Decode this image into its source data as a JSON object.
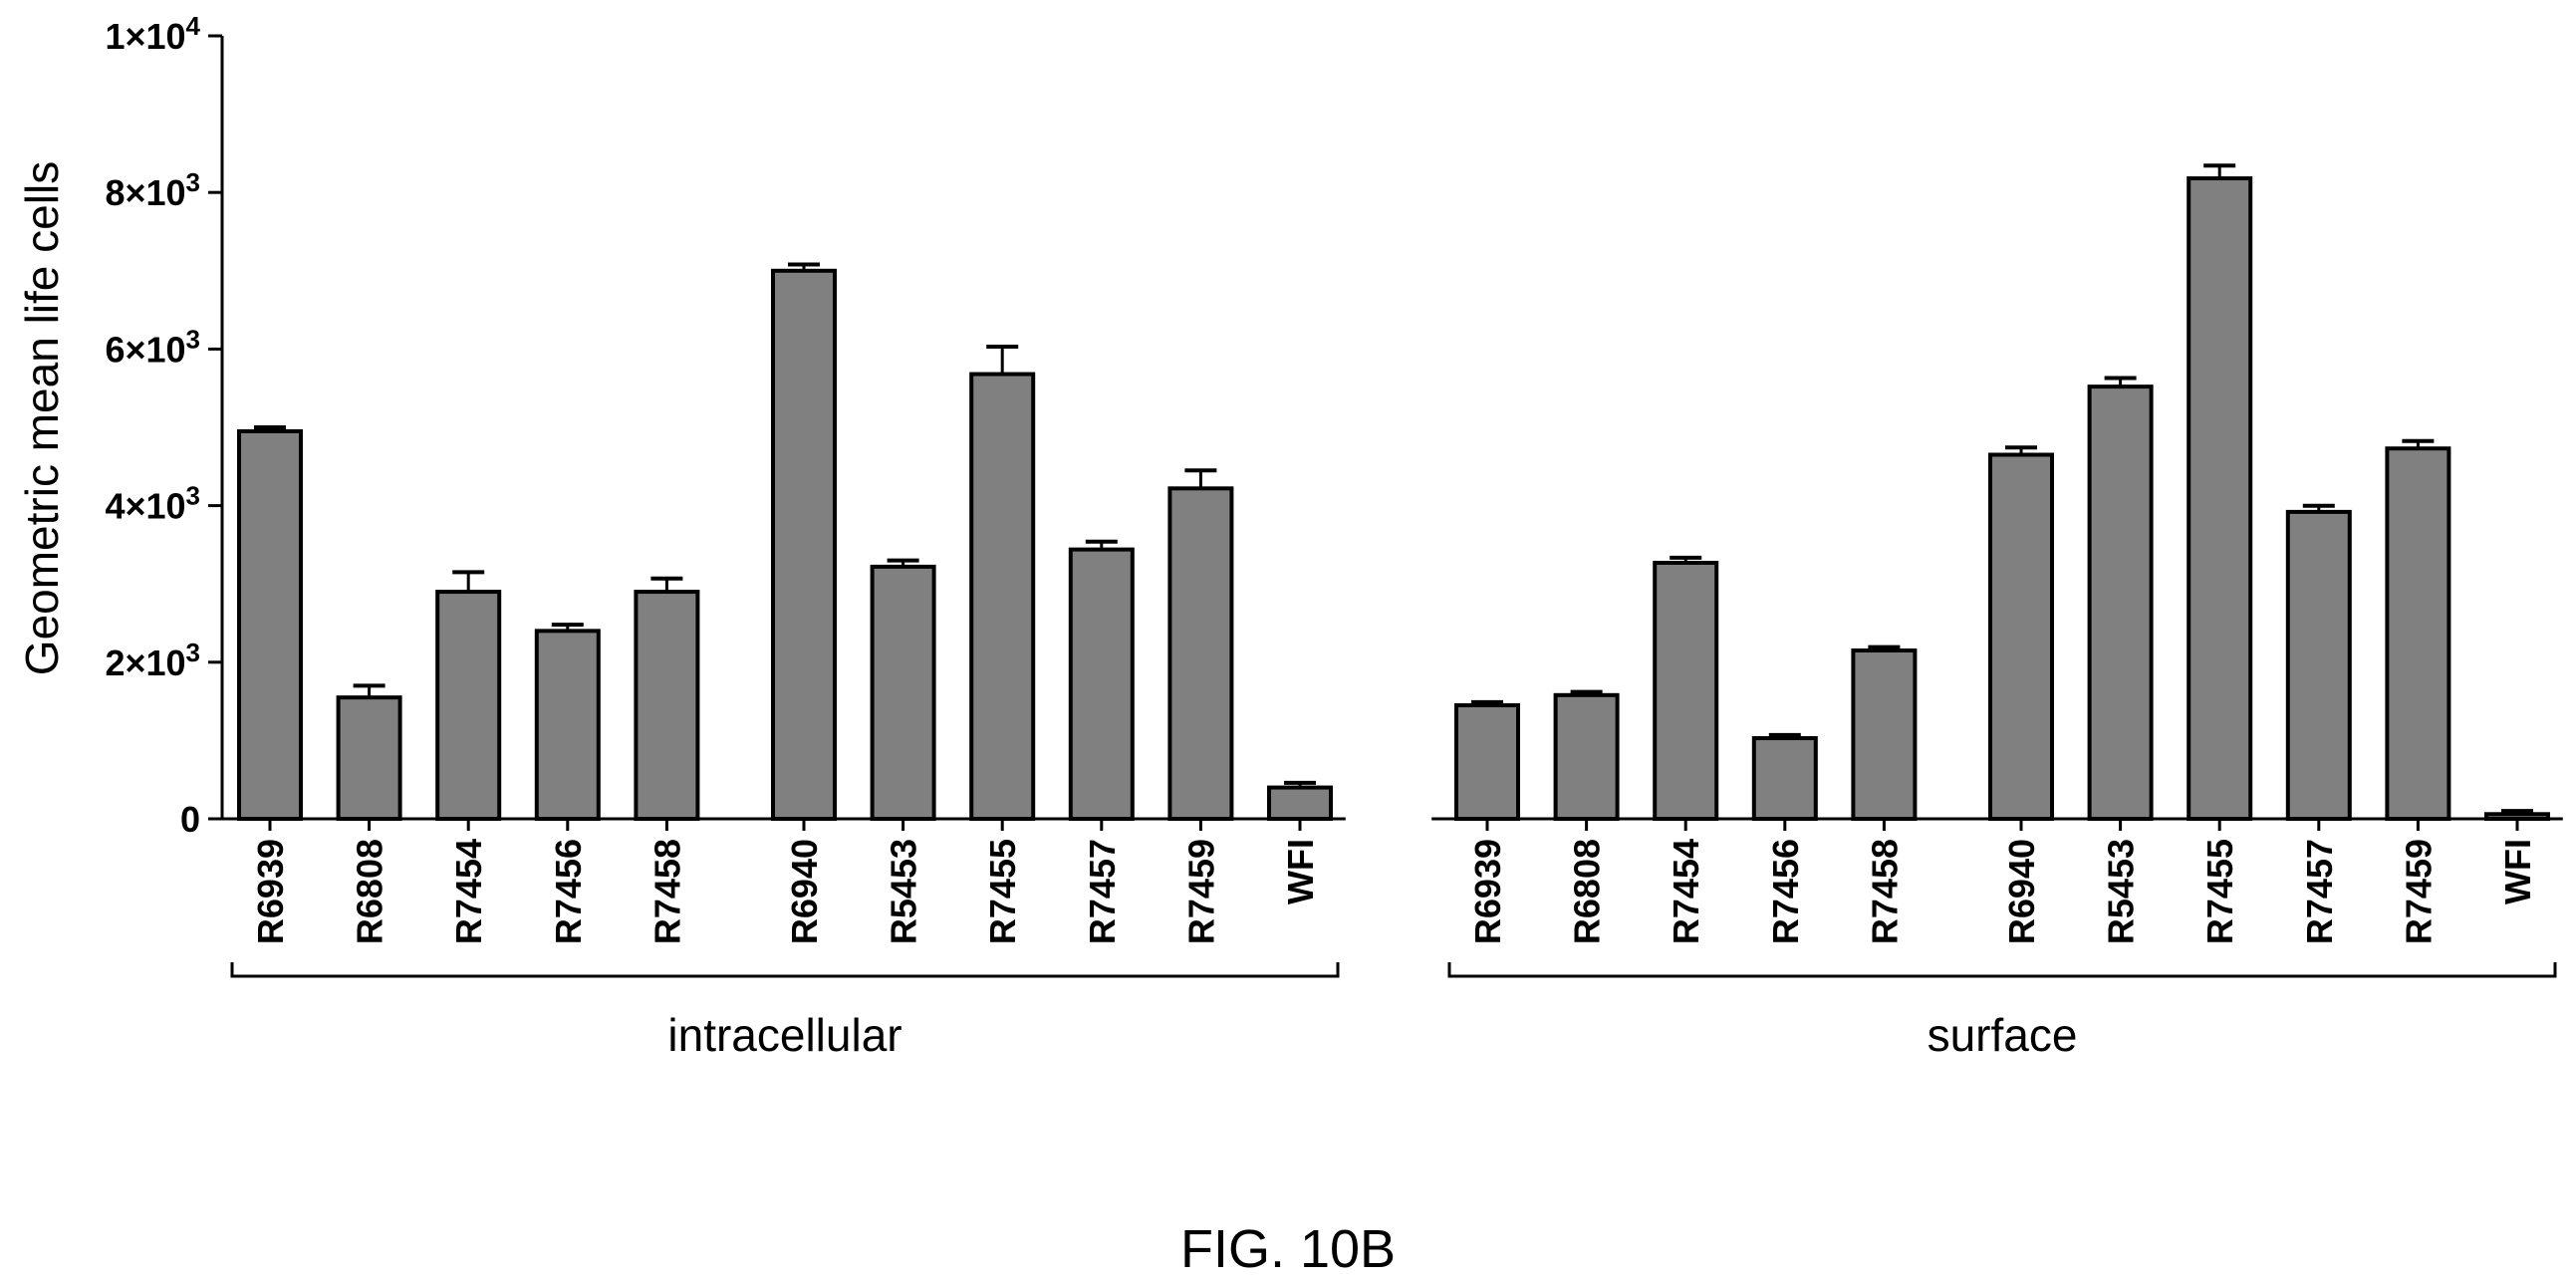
{
  "chart_data": {
    "type": "bar",
    "ylabel": "Geometric mean life cells",
    "ylim": [
      0,
      10000
    ],
    "yticks": [
      {
        "value": 0,
        "label": "0"
      },
      {
        "value": 2000,
        "label": "2×10",
        "exp": "3"
      },
      {
        "value": 4000,
        "label": "4×10",
        "exp": "3"
      },
      {
        "value": 6000,
        "label": "6×10",
        "exp": "3"
      },
      {
        "value": 8000,
        "label": "8×10",
        "exp": "3"
      },
      {
        "value": 10000,
        "label": "1×10",
        "exp": "4"
      }
    ],
    "bar_color": "#808080",
    "groups": [
      {
        "name": "intracellular",
        "categories": [
          "R6939",
          "R6808",
          "R7454",
          "R7456",
          "R7458",
          "R6940",
          "R5453",
          "R7455",
          "R7457",
          "R7459",
          "WFI"
        ],
        "values": [
          4950,
          1550,
          2900,
          2400,
          2900,
          7000,
          3220,
          5680,
          3440,
          4220,
          400
        ],
        "errors": [
          50,
          150,
          250,
          80,
          170,
          80,
          80,
          350,
          100,
          230,
          60
        ]
      },
      {
        "name": "surface",
        "categories": [
          "R6939",
          "R6808",
          "R7454",
          "R7456",
          "R7458",
          "R6940",
          "R5453",
          "R7455",
          "R7457",
          "R7459",
          "WFI"
        ],
        "values": [
          1450,
          1580,
          3270,
          1030,
          2150,
          4650,
          5520,
          8180,
          3920,
          4730,
          60
        ]
      }
    ]
  },
  "caption": "FIG. 10B"
}
